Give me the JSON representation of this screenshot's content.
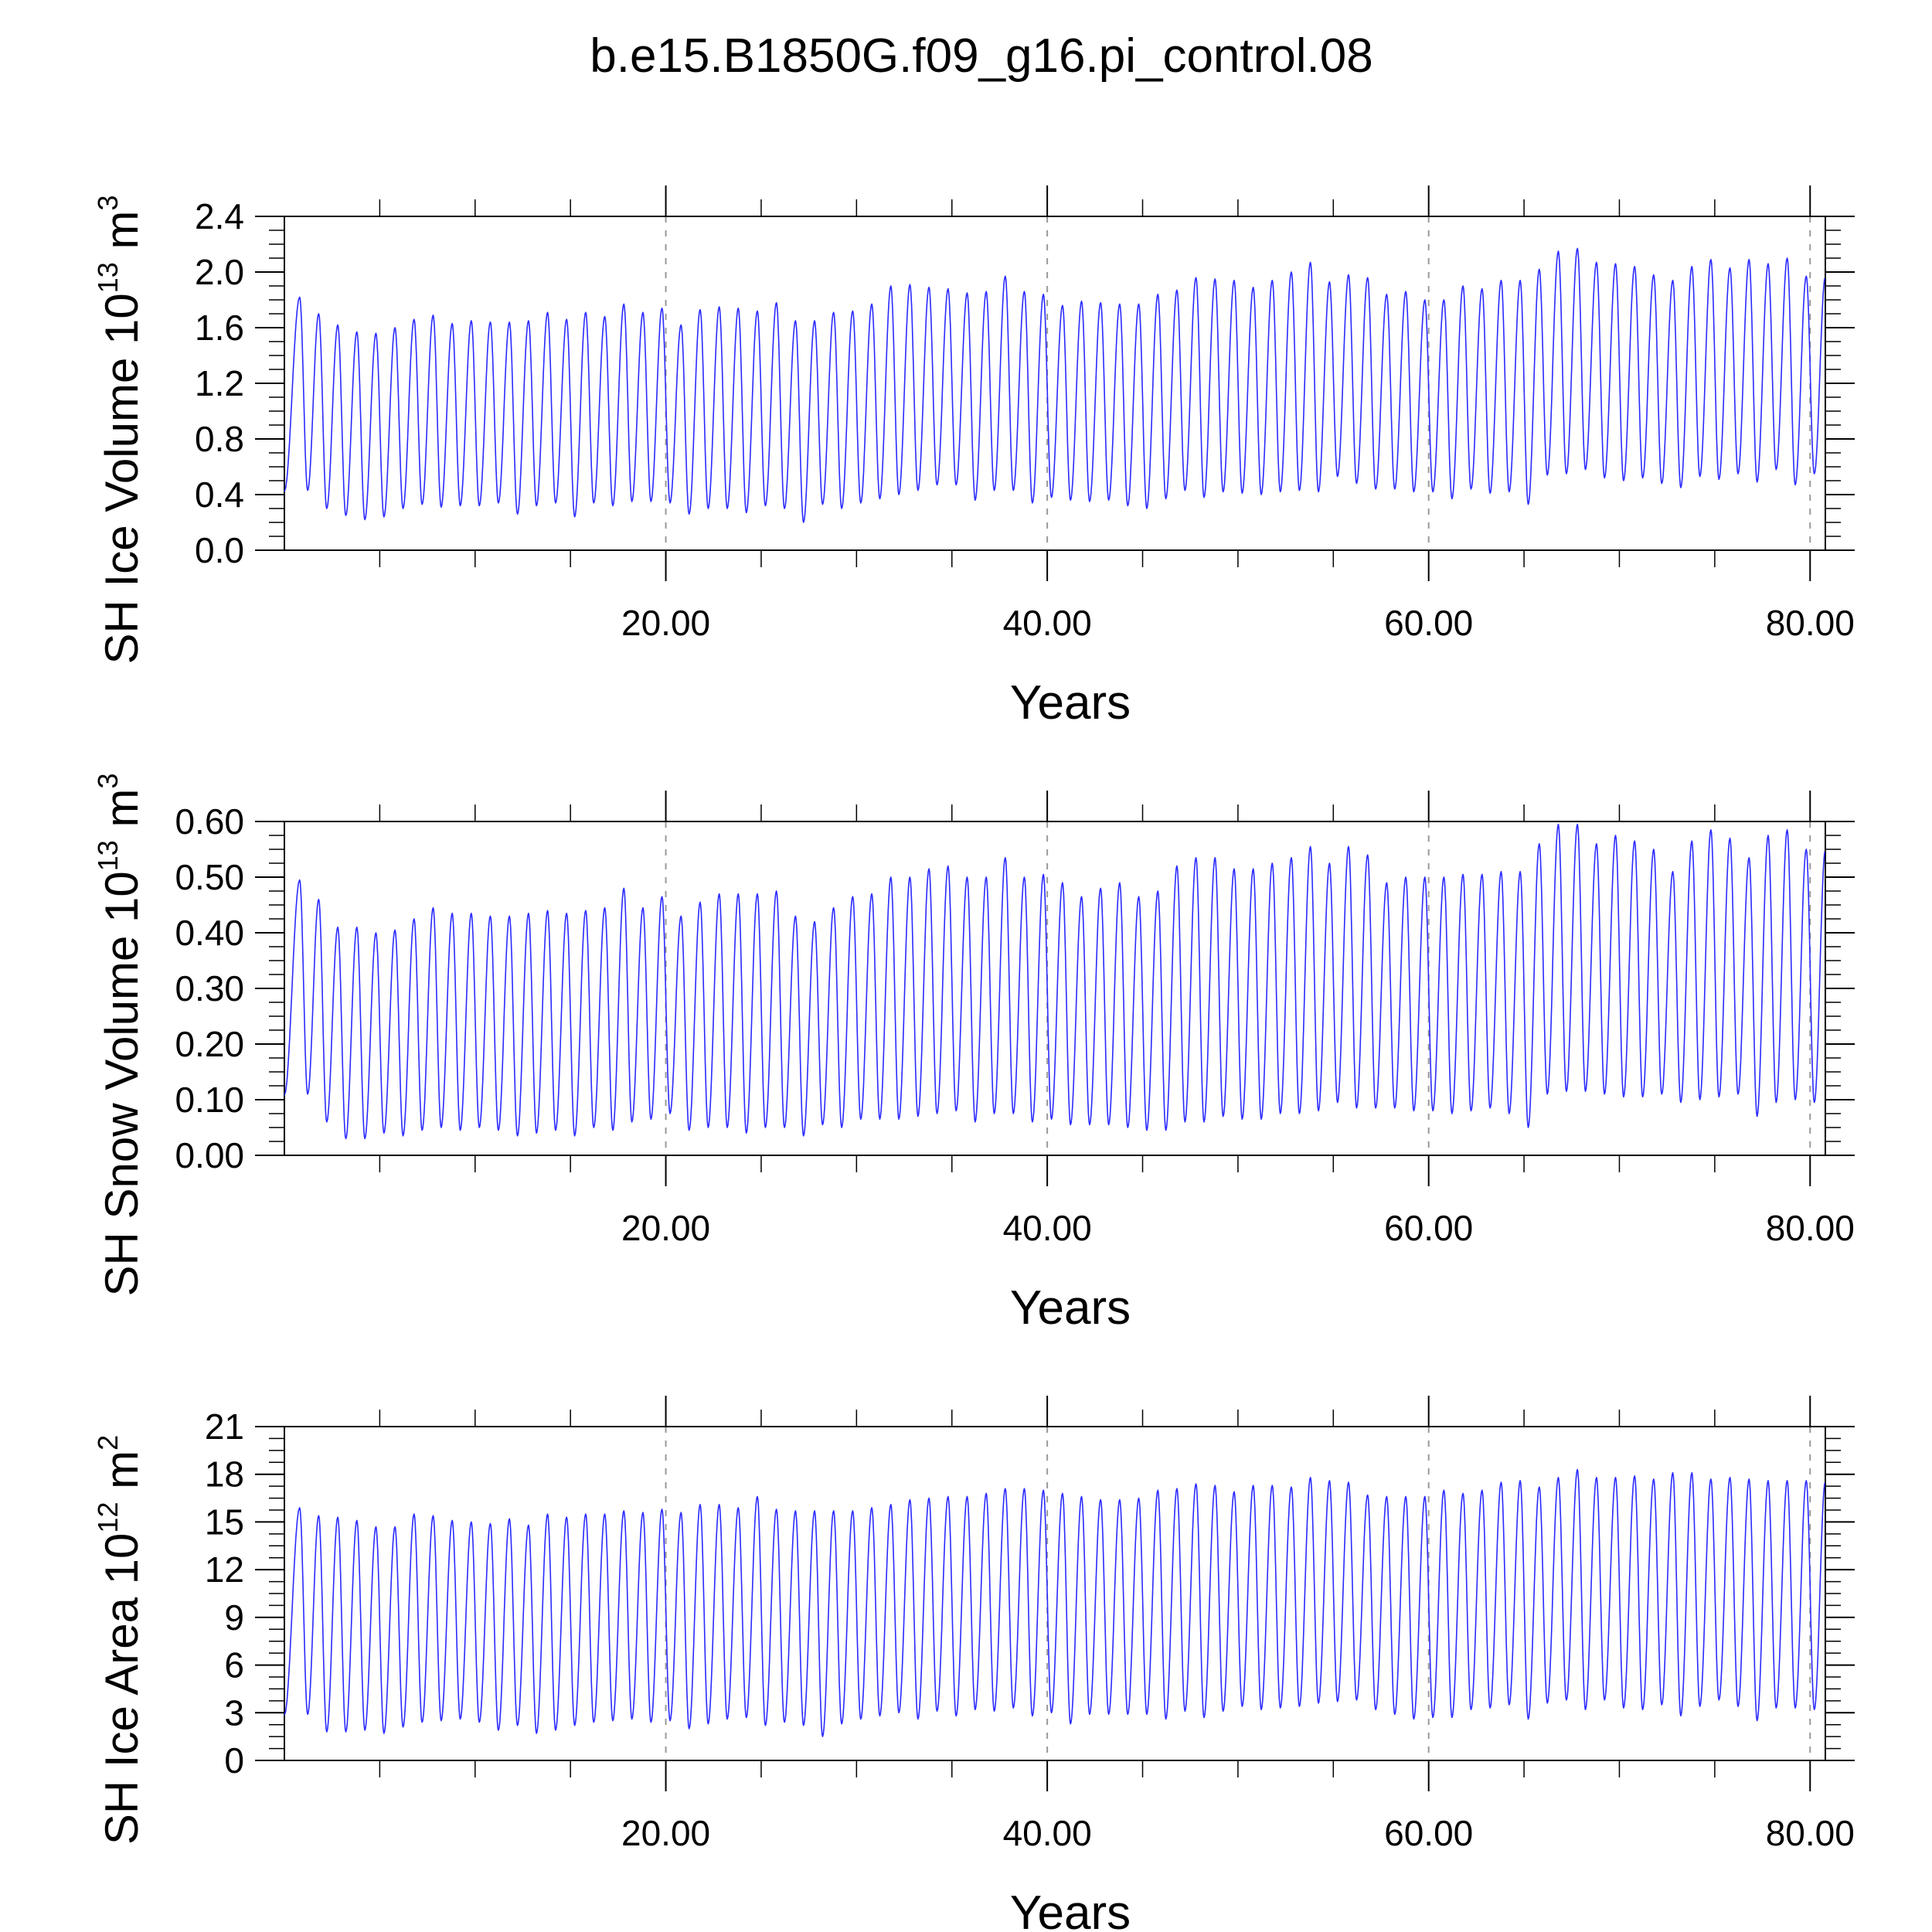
{
  "figure": {
    "title": "b.e15.B1850G.f09_g16.pi_control.08"
  },
  "style": {
    "line_color": "#2b2bff",
    "axis_color": "#000000",
    "grid_color": "#999999"
  },
  "chart_data": [
    {
      "type": "line",
      "name": "ice_volume",
      "ylabel": "SH Ice Volume 10",
      "ylabel_exp": "13",
      "ylabel_unit": "m",
      "ylabel_unit_exp": "3",
      "xlabel": "Years",
      "xlim": [
        0,
        80.8
      ],
      "ylim": [
        0,
        2.4
      ],
      "x_ticks": [
        20,
        40,
        60,
        80
      ],
      "x_tick_labels": [
        "20.00",
        "40.00",
        "60.00",
        "80.00"
      ],
      "y_ticks": [
        0,
        0.4,
        0.8,
        1.2,
        1.6,
        2.0,
        2.4
      ],
      "y_tick_labels": [
        "0.0",
        "0.4",
        "0.8",
        "1.2",
        "1.6",
        "2.0",
        "2.4"
      ],
      "grid": "vertical dashed at major x ticks",
      "series": [
        {
          "peak_year": [
            0.8,
            1.8,
            2.8,
            3.8,
            4.8,
            5.8,
            6.8,
            7.8,
            8.8,
            9.8,
            10.8,
            11.8,
            12.8,
            13.8,
            14.8,
            15.8,
            16.8,
            17.8,
            18.8,
            19.8,
            20.8,
            21.8,
            22.8,
            23.8,
            24.8,
            25.8,
            26.8,
            27.8,
            28.8,
            29.8,
            30.8,
            31.8,
            32.8,
            33.8,
            34.8,
            35.8,
            36.8,
            37.8,
            38.8,
            39.8,
            40.8,
            41.8,
            42.8,
            43.8,
            44.8,
            45.8,
            46.8,
            47.8,
            48.8,
            49.8,
            50.8,
            51.8,
            52.8,
            53.8,
            54.8,
            55.8,
            56.8,
            57.8,
            58.8,
            59.8,
            60.8,
            61.8,
            62.8,
            63.8,
            64.8,
            65.8,
            66.8,
            67.8,
            68.8,
            69.8,
            70.8,
            71.8,
            72.8,
            73.8,
            74.8,
            75.8,
            76.8,
            77.8,
            78.8,
            79.8
          ],
          "max": [
            1.82,
            1.7,
            1.62,
            1.57,
            1.56,
            1.6,
            1.66,
            1.69,
            1.63,
            1.65,
            1.64,
            1.64,
            1.65,
            1.71,
            1.66,
            1.71,
            1.68,
            1.77,
            1.71,
            1.74,
            1.62,
            1.73,
            1.75,
            1.74,
            1.72,
            1.78,
            1.65,
            1.65,
            1.71,
            1.72,
            1.77,
            1.9,
            1.91,
            1.89,
            1.88,
            1.85,
            1.86,
            1.97,
            1.86,
            1.84,
            1.76,
            1.79,
            1.78,
            1.77,
            1.77,
            1.84,
            1.87,
            1.96,
            1.95,
            1.94,
            1.89,
            1.94,
            2.0,
            2.07,
            1.93,
            1.98,
            1.96,
            1.84,
            1.86,
            1.8,
            1.8,
            1.9,
            1.88,
            1.94,
            1.94,
            2.02,
            2.15,
            2.17,
            2.07,
            2.06,
            2.04,
            1.98,
            1.94,
            2.04,
            2.09,
            2.03,
            2.09,
            2.06,
            2.1,
            1.97
          ],
          "min": [
            0.43,
            0.3,
            0.25,
            0.22,
            0.24,
            0.3,
            0.33,
            0.31,
            0.32,
            0.32,
            0.34,
            0.26,
            0.32,
            0.34,
            0.24,
            0.34,
            0.32,
            0.35,
            0.35,
            0.34,
            0.26,
            0.3,
            0.3,
            0.27,
            0.32,
            0.3,
            0.2,
            0.33,
            0.3,
            0.34,
            0.37,
            0.4,
            0.43,
            0.47,
            0.47,
            0.36,
            0.43,
            0.43,
            0.34,
            0.38,
            0.36,
            0.35,
            0.36,
            0.32,
            0.3,
            0.37,
            0.43,
            0.38,
            0.42,
            0.41,
            0.4,
            0.42,
            0.43,
            0.42,
            0.53,
            0.48,
            0.44,
            0.44,
            0.42,
            0.42,
            0.37,
            0.44,
            0.41,
            0.42,
            0.33,
            0.54,
            0.55,
            0.58,
            0.52,
            0.5,
            0.52,
            0.48,
            0.45,
            0.53,
            0.51,
            0.55,
            0.49,
            0.58,
            0.47,
            0.55
          ]
        }
      ]
    },
    {
      "type": "line",
      "name": "snow_volume",
      "ylabel": "SH Snow Volume 10",
      "ylabel_exp": "13",
      "ylabel_unit": "m",
      "ylabel_unit_exp": "3",
      "xlabel": "Years",
      "xlim": [
        0,
        80.8
      ],
      "ylim": [
        0,
        0.6
      ],
      "x_ticks": [
        20,
        40,
        60,
        80
      ],
      "x_tick_labels": [
        "20.00",
        "40.00",
        "60.00",
        "80.00"
      ],
      "y_ticks": [
        0,
        0.1,
        0.2,
        0.3,
        0.4,
        0.5,
        0.6
      ],
      "y_tick_labels": [
        "0.00",
        "0.10",
        "0.20",
        "0.30",
        "0.40",
        "0.50",
        "0.60"
      ],
      "grid": "vertical dashed at major x ticks",
      "series": [
        {
          "peak_year": [
            0.8,
            1.8,
            2.8,
            3.8,
            4.8,
            5.8,
            6.8,
            7.8,
            8.8,
            9.8,
            10.8,
            11.8,
            12.8,
            13.8,
            14.8,
            15.8,
            16.8,
            17.8,
            18.8,
            19.8,
            20.8,
            21.8,
            22.8,
            23.8,
            24.8,
            25.8,
            26.8,
            27.8,
            28.8,
            29.8,
            30.8,
            31.8,
            32.8,
            33.8,
            34.8,
            35.8,
            36.8,
            37.8,
            38.8,
            39.8,
            40.8,
            41.8,
            42.8,
            43.8,
            44.8,
            45.8,
            46.8,
            47.8,
            48.8,
            49.8,
            50.8,
            51.8,
            52.8,
            53.8,
            54.8,
            55.8,
            56.8,
            57.8,
            58.8,
            59.8,
            60.8,
            61.8,
            62.8,
            63.8,
            64.8,
            65.8,
            66.8,
            67.8,
            68.8,
            69.8,
            70.8,
            71.8,
            72.8,
            73.8,
            74.8,
            75.8,
            76.8,
            77.8,
            78.8,
            79.8
          ],
          "max": [
            0.495,
            0.46,
            0.41,
            0.41,
            0.4,
            0.405,
            0.425,
            0.445,
            0.435,
            0.435,
            0.43,
            0.43,
            0.435,
            0.44,
            0.435,
            0.44,
            0.445,
            0.48,
            0.445,
            0.465,
            0.43,
            0.455,
            0.47,
            0.47,
            0.47,
            0.475,
            0.43,
            0.42,
            0.445,
            0.465,
            0.47,
            0.5,
            0.5,
            0.515,
            0.52,
            0.5,
            0.5,
            0.535,
            0.5,
            0.505,
            0.49,
            0.465,
            0.48,
            0.49,
            0.465,
            0.475,
            0.52,
            0.535,
            0.535,
            0.515,
            0.515,
            0.525,
            0.535,
            0.555,
            0.525,
            0.555,
            0.54,
            0.49,
            0.5,
            0.5,
            0.5,
            0.505,
            0.505,
            0.51,
            0.51,
            0.56,
            0.595,
            0.595,
            0.56,
            0.575,
            0.565,
            0.55,
            0.51,
            0.565,
            0.585,
            0.57,
            0.535,
            0.575,
            0.585,
            0.55
          ],
          "min": [
            0.11,
            0.06,
            0.03,
            0.03,
            0.04,
            0.035,
            0.045,
            0.05,
            0.045,
            0.05,
            0.045,
            0.035,
            0.04,
            0.045,
            0.035,
            0.05,
            0.045,
            0.06,
            0.065,
            0.075,
            0.045,
            0.05,
            0.05,
            0.04,
            0.05,
            0.05,
            0.035,
            0.055,
            0.05,
            0.065,
            0.065,
            0.065,
            0.07,
            0.075,
            0.08,
            0.06,
            0.075,
            0.075,
            0.06,
            0.065,
            0.055,
            0.055,
            0.055,
            0.05,
            0.045,
            0.045,
            0.06,
            0.06,
            0.07,
            0.065,
            0.065,
            0.075,
            0.075,
            0.08,
            0.095,
            0.085,
            0.085,
            0.085,
            0.08,
            0.08,
            0.075,
            0.08,
            0.085,
            0.075,
            0.05,
            0.11,
            0.115,
            0.115,
            0.11,
            0.105,
            0.105,
            0.11,
            0.095,
            0.1,
            0.105,
            0.11,
            0.07,
            0.095,
            0.1,
            0.095
          ]
        }
      ]
    },
    {
      "type": "line",
      "name": "ice_area",
      "ylabel": "SH Ice Area 10",
      "ylabel_exp": "12",
      "ylabel_unit": "m",
      "ylabel_unit_exp": "2",
      "xlabel": "Years",
      "xlim": [
        0,
        80.8
      ],
      "ylim": [
        0,
        21
      ],
      "x_ticks": [
        20,
        40,
        60,
        80
      ],
      "x_tick_labels": [
        "20.00",
        "40.00",
        "60.00",
        "80.00"
      ],
      "y_ticks": [
        0,
        3,
        6,
        9,
        12,
        15,
        18,
        21
      ],
      "y_tick_labels": [
        "0",
        "3",
        "6",
        "9",
        "12",
        "15",
        "18",
        "21"
      ],
      "grid": "vertical dashed at major x ticks",
      "series": [
        {
          "peak_year": [
            0.8,
            1.8,
            2.8,
            3.8,
            4.8,
            5.8,
            6.8,
            7.8,
            8.8,
            9.8,
            10.8,
            11.8,
            12.8,
            13.8,
            14.8,
            15.8,
            16.8,
            17.8,
            18.8,
            19.8,
            20.8,
            21.8,
            22.8,
            23.8,
            24.8,
            25.8,
            26.8,
            27.8,
            28.8,
            29.8,
            30.8,
            31.8,
            32.8,
            33.8,
            34.8,
            35.8,
            36.8,
            37.8,
            38.8,
            39.8,
            40.8,
            41.8,
            42.8,
            43.8,
            44.8,
            45.8,
            46.8,
            47.8,
            48.8,
            49.8,
            50.8,
            51.8,
            52.8,
            53.8,
            54.8,
            55.8,
            56.8,
            57.8,
            58.8,
            59.8,
            60.8,
            61.8,
            62.8,
            63.8,
            64.8,
            65.8,
            66.8,
            67.8,
            68.8,
            69.8,
            70.8,
            71.8,
            72.8,
            73.8,
            74.8,
            75.8,
            76.8,
            77.8,
            78.8,
            79.8
          ],
          "max": [
            15.9,
            15.4,
            15.3,
            15.1,
            14.7,
            14.7,
            15.5,
            15.4,
            15.1,
            15.0,
            14.9,
            15.2,
            14.8,
            15.5,
            15.3,
            15.5,
            15.5,
            15.7,
            15.6,
            15.8,
            15.6,
            16.1,
            16.1,
            15.9,
            16.6,
            15.8,
            15.7,
            15.7,
            15.7,
            15.7,
            15.9,
            16.1,
            16.4,
            16.5,
            16.6,
            16.6,
            16.8,
            17.1,
            17.1,
            17.0,
            16.8,
            16.6,
            16.4,
            16.4,
            16.5,
            17.0,
            17.1,
            17.4,
            17.3,
            16.9,
            17.3,
            17.3,
            17.2,
            17.8,
            17.6,
            17.5,
            16.7,
            16.6,
            16.6,
            16.6,
            17.0,
            16.8,
            17.0,
            17.5,
            17.6,
            17.2,
            17.8,
            18.3,
            17.8,
            17.8,
            17.9,
            17.7,
            18.1,
            18.1,
            17.7,
            17.8,
            17.7,
            17.6,
            17.6,
            17.6
          ],
          "min": [
            2.9,
            1.8,
            1.8,
            1.9,
            1.7,
            2.1,
            2.4,
            2.5,
            2.6,
            2.4,
            1.9,
            2.2,
            1.7,
            1.9,
            2.2,
            2.4,
            2.5,
            2.6,
            2.4,
            2.5,
            2.0,
            2.3,
            2.6,
            2.7,
            2.2,
            2.4,
            2.2,
            1.5,
            2.3,
            2.6,
            2.8,
            3.0,
            2.6,
            3.1,
            2.8,
            3.2,
            3.1,
            3.3,
            2.8,
            3.0,
            2.3,
            2.9,
            2.9,
            2.9,
            2.9,
            2.6,
            3.1,
            2.7,
            3.1,
            3.4,
            3.2,
            3.3,
            3.4,
            3.6,
            3.7,
            3.8,
            3.2,
            2.9,
            2.6,
            2.7,
            2.7,
            3.2,
            3.3,
            3.5,
            2.6,
            3.6,
            3.8,
            3.2,
            3.8,
            3.3,
            3.2,
            3.5,
            2.8,
            3.4,
            3.8,
            3.4,
            2.5,
            3.3,
            3.3,
            3.2
          ]
        }
      ]
    }
  ]
}
